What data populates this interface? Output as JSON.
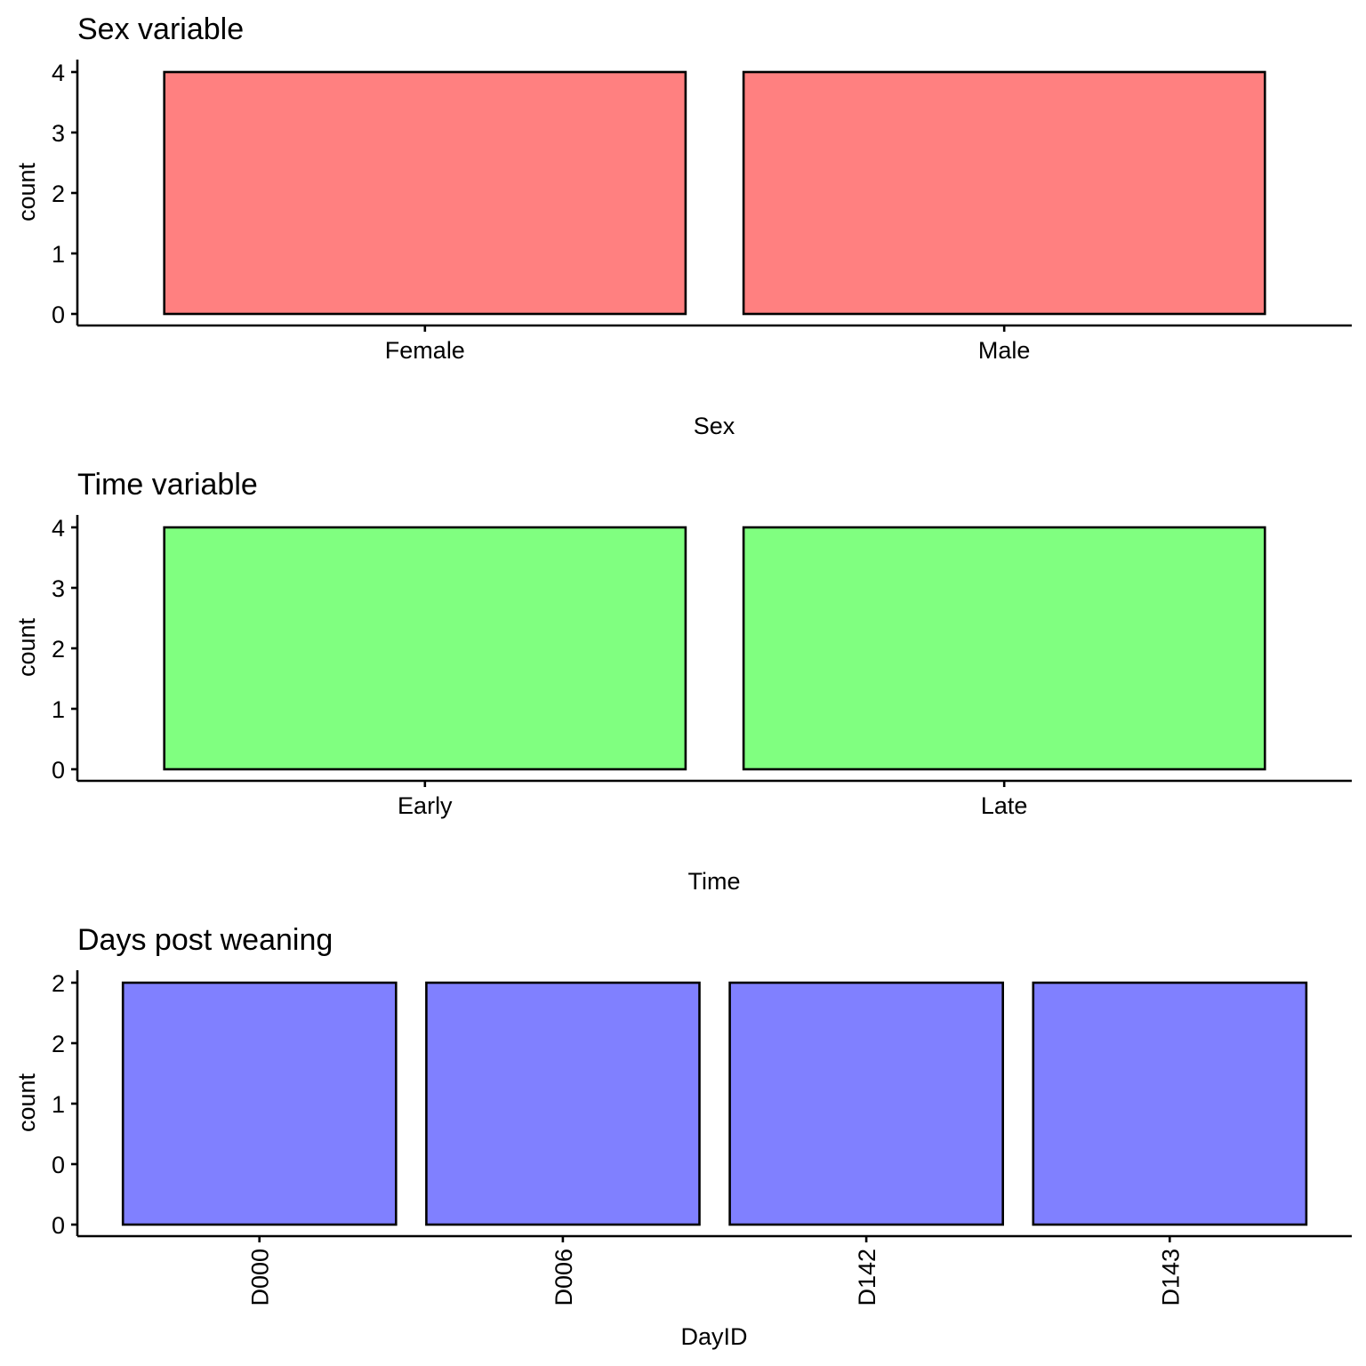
{
  "chart_data": [
    {
      "type": "bar",
      "title": "Sex variable",
      "xlabel": "Sex",
      "ylabel": "count",
      "categories": [
        "Female",
        "Male"
      ],
      "values": [
        4,
        4
      ],
      "ylim": [
        0,
        4.2
      ],
      "yticks": [
        0,
        1,
        2,
        3,
        4
      ],
      "ytick_labels": [
        "0",
        "1",
        "2",
        "3",
        "4"
      ],
      "bar_color": "#FF8080",
      "x_tick_rotation": 0,
      "grid": false,
      "legend": "none"
    },
    {
      "type": "bar",
      "title": "Time variable",
      "xlabel": "Time",
      "ylabel": "count",
      "categories": [
        "Early",
        "Late"
      ],
      "values": [
        4,
        4
      ],
      "ylim": [
        0,
        4.2
      ],
      "yticks": [
        0,
        1,
        2,
        3,
        4
      ],
      "ytick_labels": [
        "0",
        "1",
        "2",
        "3",
        "4"
      ],
      "bar_color": "#80FF80",
      "x_tick_rotation": 0,
      "grid": false,
      "legend": "none"
    },
    {
      "type": "bar",
      "title": "Days post weaning",
      "xlabel": "DayID",
      "ylabel": "count",
      "categories": [
        "D000",
        "D006",
        "D142",
        "D143"
      ],
      "values": [
        2,
        2,
        2,
        2
      ],
      "ylim": [
        0,
        2.1
      ],
      "yticks": [
        0,
        0.5,
        1,
        1.5,
        2
      ],
      "ytick_labels": [
        "0",
        "0",
        "1",
        "2",
        "2"
      ],
      "bar_color": "#8080FF",
      "x_tick_rotation": -90,
      "grid": false,
      "legend": "none"
    }
  ]
}
